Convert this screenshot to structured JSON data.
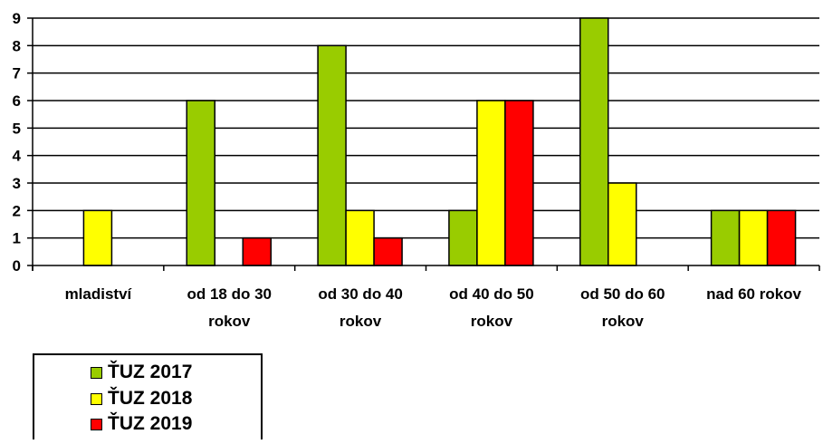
{
  "chart_data": {
    "type": "bar",
    "categories": [
      [
        "mladiství"
      ],
      [
        "od 18 do 30",
        "rokov"
      ],
      [
        "od 30 do 40",
        "rokov"
      ],
      [
        "od 40 do 50",
        "rokov"
      ],
      [
        "od 50 do 60",
        "rokov"
      ],
      [
        "nad 60 rokov"
      ]
    ],
    "series": [
      {
        "name": "ŤUZ 2017",
        "color": "#99CC00",
        "values": [
          0,
          6,
          8,
          2,
          9,
          2
        ]
      },
      {
        "name": "ŤUZ 2018",
        "color": "#FFFF00",
        "values": [
          2,
          0,
          2,
          6,
          3,
          2
        ]
      },
      {
        "name": "ŤUZ 2019",
        "color": "#FF0000",
        "values": [
          0,
          1,
          1,
          6,
          0,
          2
        ]
      }
    ],
    "ylim": [
      0,
      9
    ],
    "yticks": [
      0,
      1,
      2,
      3,
      4,
      5,
      6,
      7,
      8,
      9
    ],
    "grid": true,
    "legend_position": "bottom-left"
  }
}
